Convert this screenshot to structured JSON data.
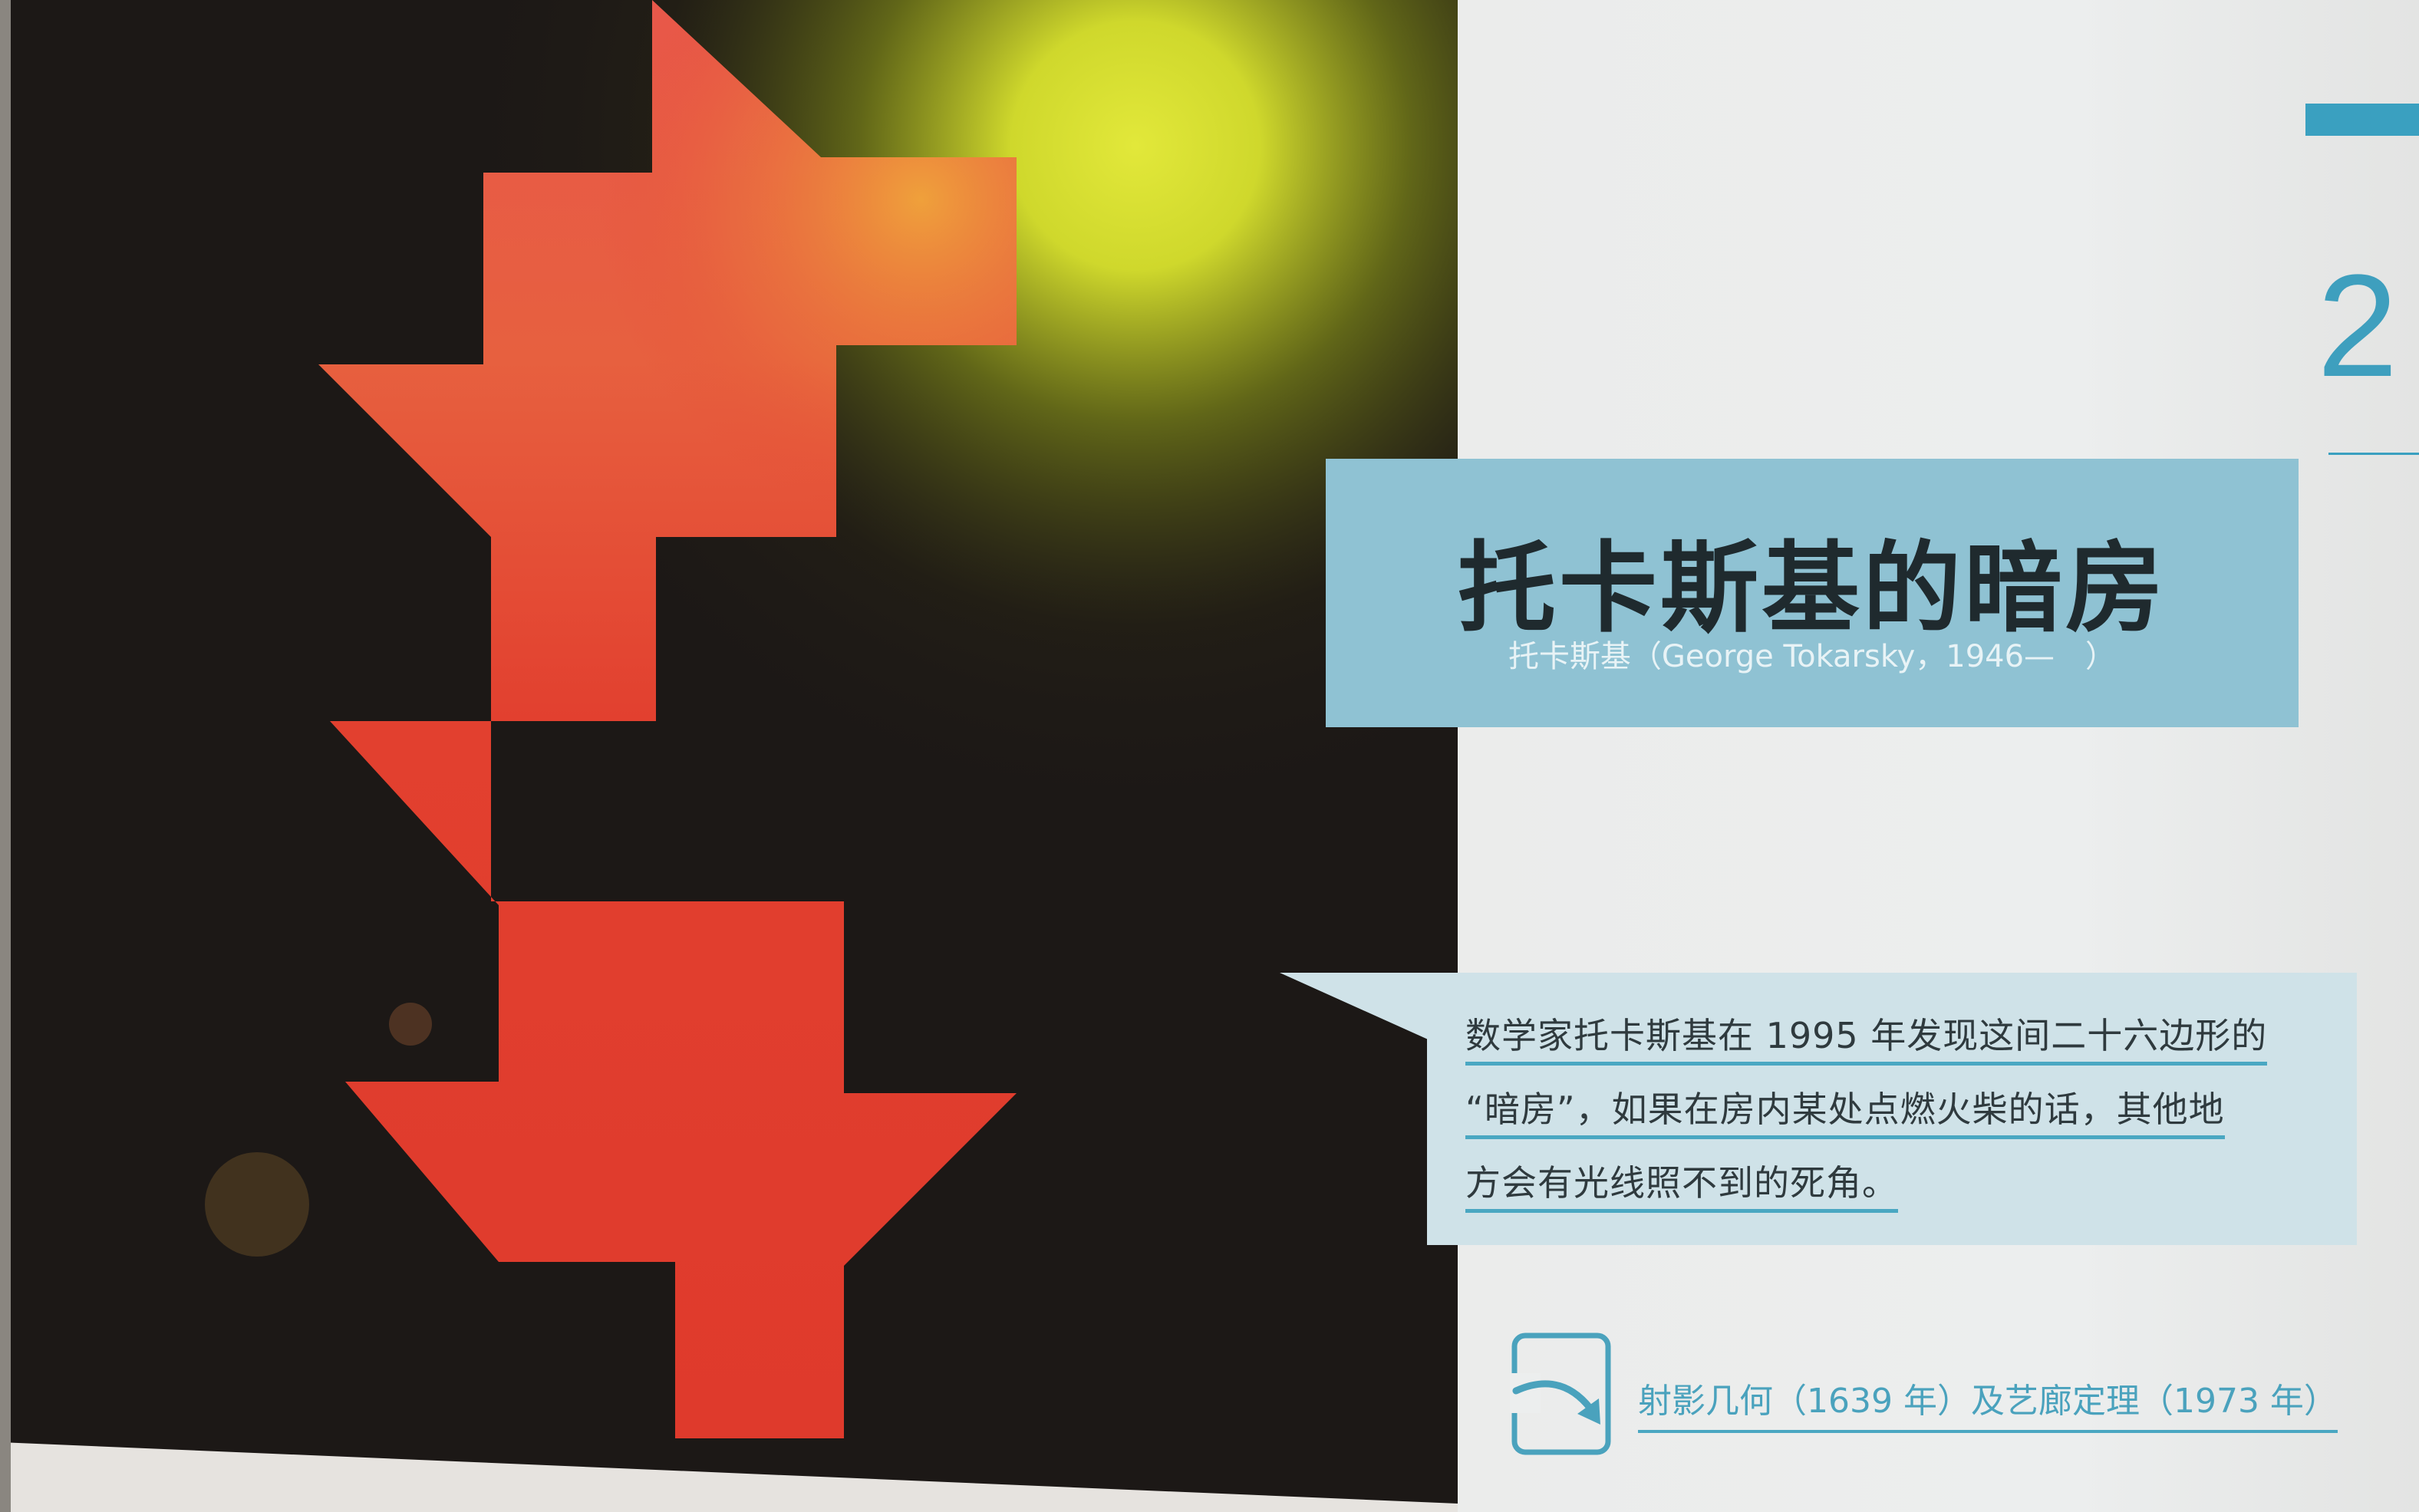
{
  "chapter": {
    "number": "2"
  },
  "title": {
    "main": "托卡斯基的暗房",
    "subtitle": "托卡斯基（George Tokarsky，1946—　）"
  },
  "callout": {
    "lines": [
      "数学家托卡斯基在 1995 年发现这间二十六边形的",
      "“暗房”，如果在房内某处点燃火柴的话，其他地",
      "方会有光线照不到的死角。"
    ]
  },
  "reference": {
    "icon": "curved-arrow-icon",
    "text": "射影几何（1639 年）及艺廊定理（1973 年）"
  },
  "illustration": {
    "icon": "tokarsky-room-polygon",
    "colors": {
      "background": "#1f1a17",
      "room": "#e23e2f",
      "glow": "#d9e330"
    }
  }
}
